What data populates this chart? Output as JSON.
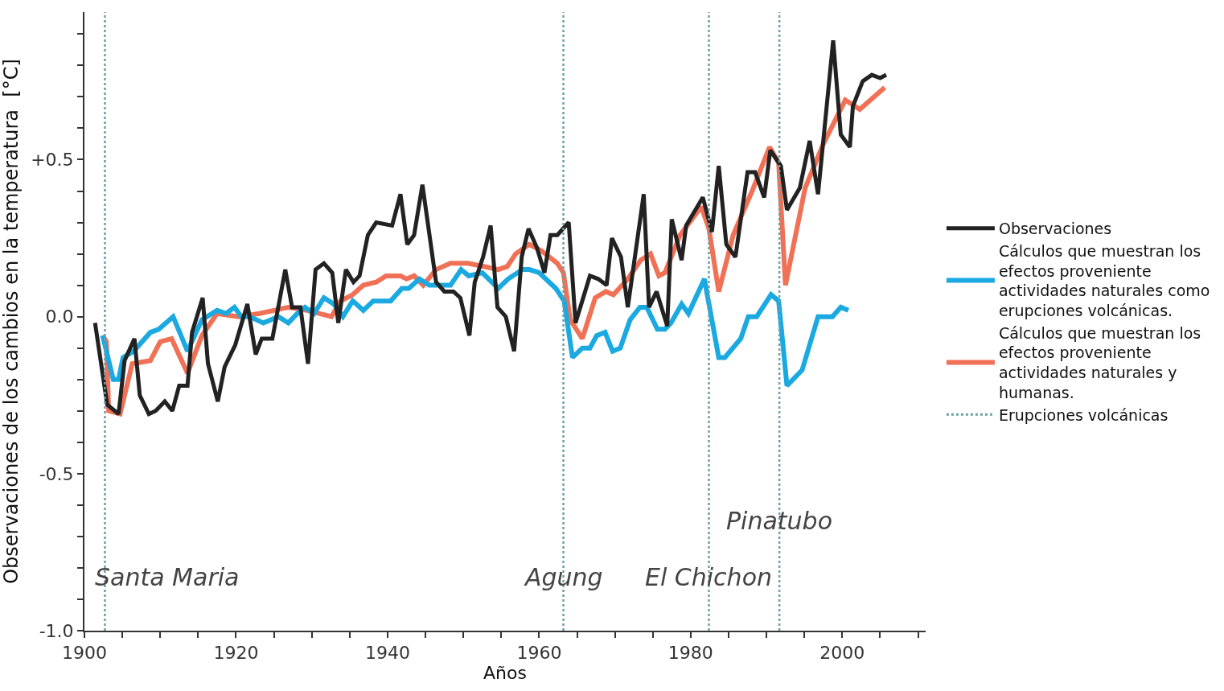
{
  "chart_data": {
    "type": "line",
    "xlabel": "Años",
    "ylabel": "Observaciones de los cambios en la temperatura  [°C]",
    "xlim": [
      1900,
      2011
    ],
    "xticks": [
      1900,
      {
        "value": 1905,
        "label": null
      },
      {
        "value": 1910,
        "label": null
      },
      {
        "value": 1915,
        "label": null
      },
      1920,
      {
        "value": 1925,
        "label": null
      },
      {
        "value": 1930,
        "label": null
      },
      {
        "value": 1935,
        "label": null
      },
      1940,
      {
        "value": 1945,
        "label": null
      },
      {
        "value": 1950,
        "label": null
      },
      {
        "value": 1955,
        "label": null
      },
      1960,
      {
        "value": 1965,
        "label": null
      },
      {
        "value": 1970,
        "label": null
      },
      {
        "value": 1975,
        "label": null
      },
      1980,
      {
        "value": 1985,
        "label": null
      },
      {
        "value": 1990,
        "label": null
      },
      {
        "value": 1995,
        "label": null
      },
      2000,
      {
        "value": 2005,
        "label": null
      },
      {
        "value": 2010,
        "label": null
      }
    ],
    "ylim": [
      -1,
      0.97
    ],
    "yticks": [
      {
        "value": -1,
        "label": "-1.0"
      },
      {
        "value": -0.9,
        "label": null
      },
      {
        "value": -0.8,
        "label": null
      },
      {
        "value": -0.7,
        "label": null
      },
      {
        "value": -0.6,
        "label": null
      },
      {
        "value": -0.5,
        "label": "-0.5"
      },
      {
        "value": -0.4,
        "label": null
      },
      {
        "value": -0.3,
        "label": null
      },
      {
        "value": -0.2,
        "label": null
      },
      {
        "value": -0.1,
        "label": null
      },
      {
        "value": 0,
        "label": "0.0"
      },
      {
        "value": 0.1,
        "label": null
      },
      {
        "value": 0.2,
        "label": null
      },
      {
        "value": 0.3,
        "label": null
      },
      {
        "value": 0.4,
        "label": null
      },
      {
        "value": 0.5,
        "label": "+0.5"
      },
      {
        "value": 0.6,
        "label": null
      },
      {
        "value": 0.7,
        "label": null
      },
      {
        "value": 0.8,
        "label": null
      },
      {
        "value": 0.9,
        "label": null
      }
    ],
    "legend": "right",
    "series": [
      {
        "name": "Observaciones",
        "color": "#222222",
        "x": [
          1901.4,
          1903,
          1904.5,
          1905.3,
          1906.6,
          1907.3,
          1908.5,
          1909.4,
          1910.6,
          1911.6,
          1912.5,
          1913.6,
          1914.2,
          1915.6,
          1916.3,
          1917.6,
          1918.5,
          1919.9,
          1921.5,
          1922.6,
          1923.4,
          1924.8,
          1926.5,
          1927.4,
          1928.5,
          1929.5,
          1930.5,
          1931.6,
          1932.7,
          1933.5,
          1934.5,
          1935.5,
          1936.3,
          1937.4,
          1938.5,
          1940.6,
          1941.7,
          1942.6,
          1943.5,
          1944.6,
          1946.4,
          1947.5,
          1948.7,
          1949.6,
          1950.8,
          1951.5,
          1952.6,
          1953.6,
          1954.5,
          1955.6,
          1956.7,
          1957.7,
          1958.6,
          1959.7,
          1960.7,
          1961.5,
          1962.4,
          1963.9,
          1964.8,
          1966.7,
          1967.8,
          1968.9,
          1969.6,
          1970.8,
          1971.7,
          1973.8,
          1974.5,
          1975.5,
          1976.9,
          1977.5,
          1978.8,
          1979.4,
          1981.6,
          1982.8,
          1983.7,
          1984.7,
          1985.9,
          1987.5,
          1988.5,
          1989.7,
          1990.5,
          1991.9,
          1992.7,
          1994.4,
          1995.7,
          1996.8,
          1998.8,
          1999.8,
          2001,
          2001.4,
          2002.7,
          2003.9,
          2005,
          2005.8
        ],
        "values": [
          -0.02,
          -0.28,
          -0.31,
          -0.14,
          -0.07,
          -0.25,
          -0.31,
          -0.3,
          -0.27,
          -0.3,
          -0.22,
          -0.22,
          -0.05,
          0.06,
          -0.15,
          -0.27,
          -0.16,
          -0.09,
          0.04,
          -0.12,
          -0.07,
          -0.07,
          0.15,
          0.03,
          0.03,
          -0.15,
          0.15,
          0.17,
          0.14,
          -0.02,
          0.15,
          0.11,
          0.13,
          0.26,
          0.3,
          0.29,
          0.39,
          0.23,
          0.26,
          0.42,
          0.11,
          0.08,
          0.08,
          0.06,
          -0.06,
          0.11,
          0.19,
          0.29,
          0.03,
          0,
          -0.11,
          0.19,
          0.28,
          0.22,
          0.14,
          0.26,
          0.26,
          0.3,
          -0.02,
          0.13,
          0.12,
          0.1,
          0.25,
          0.19,
          0.03,
          0.39,
          0.03,
          0.08,
          -0.03,
          0.31,
          0.18,
          0.29,
          0.38,
          0.27,
          0.48,
          0.23,
          0.19,
          0.46,
          0.46,
          0.38,
          0.53,
          0.48,
          0.34,
          0.41,
          0.56,
          0.39,
          0.88,
          0.58,
          0.54,
          0.67,
          0.75,
          0.77,
          0.76,
          0.77
        ]
      },
      {
        "name": "Cálculos que muestran los efectos proveniente actividades naturales como erupciones volcánicas.",
        "color": "#1aa9e0",
        "x": [
          1902.4,
          1903.8,
          1904.5,
          1905.1,
          1906.5,
          1908.7,
          1909.8,
          1911.7,
          1913.6,
          1915.5,
          1917.5,
          1918.7,
          1919.8,
          1920.7,
          1921.8,
          1923.6,
          1925.6,
          1926.9,
          1928.1,
          1929.1,
          1930.3,
          1931.6,
          1932.9,
          1934.1,
          1935.4,
          1936.8,
          1938.1,
          1940.4,
          1941.9,
          1942.8,
          1944.2,
          1945.5,
          1948.3,
          1949.7,
          1950.7,
          1952.5,
          1954.6,
          1955.9,
          1957.8,
          1958.7,
          1960,
          1962.2,
          1963.3,
          1964.4,
          1965.7,
          1966.7,
          1967.6,
          1968.7,
          1969.7,
          1970.7,
          1972,
          1973.3,
          1974.2,
          1975.6,
          1976.6,
          1977.4,
          1978.8,
          1979.7,
          1981.8,
          1983.7,
          1984.5,
          1986.6,
          1987.6,
          1988.7,
          1990.6,
          1991.6,
          1992.7,
          1994.7,
          1996.8,
          1998.7,
          1999.8,
          2000.8
        ],
        "values": [
          -0.06,
          -0.2,
          -0.2,
          -0.13,
          -0.11,
          -0.05,
          -0.04,
          0,
          -0.11,
          -0.01,
          0.02,
          0.01,
          0.03,
          0,
          0,
          -0.02,
          0,
          -0.02,
          0.01,
          0.03,
          0.01,
          0.06,
          0.04,
          0,
          0.05,
          0.02,
          0.05,
          0.05,
          0.09,
          0.09,
          0.12,
          0.1,
          0.1,
          0.15,
          0.13,
          0.14,
          0.09,
          0.12,
          0.15,
          0.15,
          0.14,
          0.09,
          0.05,
          -0.13,
          -0.1,
          -0.1,
          -0.06,
          -0.05,
          -0.11,
          -0.1,
          -0.01,
          0.03,
          0.03,
          -0.04,
          -0.04,
          -0.02,
          0.04,
          0.01,
          0.12,
          -0.13,
          -0.13,
          -0.07,
          0,
          0,
          0.07,
          0.05,
          -0.22,
          -0.17,
          0,
          0,
          0.03,
          0.02
        ]
      },
      {
        "name": "Cálculos que muestran los efectos proveniente actividades naturales y humanas.",
        "color": "#f07155",
        "x": [
          1902.4,
          1902.9,
          1903.2,
          1904.7,
          1906.3,
          1908.7,
          1910,
          1911.5,
          1913.6,
          1915.5,
          1917.5,
          1920.3,
          1923.1,
          1925,
          1926.9,
          1929.4,
          1932.6,
          1933.8,
          1935.4,
          1936.8,
          1938.5,
          1939.8,
          1941.7,
          1942.5,
          1943.5,
          1944.7,
          1946.4,
          1948.3,
          1950.6,
          1952.7,
          1954.6,
          1955.8,
          1956.9,
          1958.7,
          1960.3,
          1962.4,
          1963.2,
          1964.1,
          1965.7,
          1967.4,
          1968.8,
          1969.8,
          1971.7,
          1973.4,
          1974.7,
          1975.8,
          1976.6,
          1978.6,
          1981.4,
          1982.4,
          1983.7,
          1985.6,
          1988.1,
          1990.4,
          1991.6,
          1992.5,
          1995.1,
          1997.5,
          2000.4,
          2002.3,
          2005.6
        ],
        "values": [
          -0.06,
          -0.08,
          -0.3,
          -0.31,
          -0.15,
          -0.14,
          -0.08,
          -0.07,
          -0.18,
          -0.06,
          0.01,
          0,
          0.01,
          0.02,
          0.03,
          0.02,
          0,
          0.05,
          0.07,
          0.1,
          0.11,
          0.13,
          0.13,
          0.12,
          0.13,
          0.1,
          0.15,
          0.17,
          0.17,
          0.16,
          0.15,
          0.16,
          0.2,
          0.23,
          0.21,
          0.17,
          0.14,
          -0.01,
          -0.07,
          0.06,
          0.08,
          0.07,
          0.12,
          0.18,
          0.2,
          0.13,
          0.14,
          0.26,
          0.35,
          0.28,
          0.08,
          0.26,
          0.4,
          0.54,
          0.49,
          0.1,
          0.41,
          0.55,
          0.69,
          0.66,
          0.73
        ]
      }
    ],
    "ref_lines": [
      {
        "axis": "x",
        "value": 1902.7,
        "label": "Santa Maria",
        "color": "#6f9fa8",
        "line_style": "dotted"
      },
      {
        "axis": "x",
        "value": 1963.2,
        "label": "Agung",
        "color": "#6f9fa8",
        "line_style": "dotted"
      },
      {
        "axis": "x",
        "value": 1982.4,
        "label": "El Chichon",
        "color": "#6f9fa8",
        "line_style": "dotted"
      },
      {
        "axis": "x",
        "value": 1991.7,
        "label": "Pinatubo",
        "color": "#6f9fa8",
        "line_style": "dotted"
      }
    ],
    "annotations": [
      "Erupciones volcánicas"
    ]
  }
}
